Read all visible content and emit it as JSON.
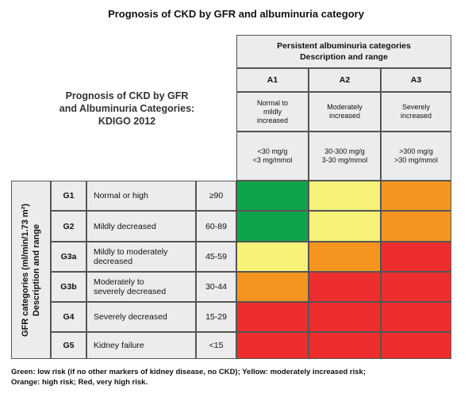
{
  "title": "Prognosis of CKD by GFR and albuminuria category",
  "left_title": [
    "Prognosis of CKD by GFR",
    "and Albuminuria Categories:",
    "KDIGO 2012"
  ],
  "albuminuria_header": [
    "Persistent albuminuria categories",
    "Description and range"
  ],
  "columns": [
    {
      "code": "A1",
      "desc": [
        "Normal to",
        "mildly",
        "increased"
      ],
      "range": [
        "<30 mg/g",
        "<3 mg/mmol"
      ]
    },
    {
      "code": "A2",
      "desc": [
        "Moderately",
        "increased"
      ],
      "range": [
        "30-300 mg/g",
        "3-30 mg/mmol"
      ]
    },
    {
      "code": "A3",
      "desc": [
        "Severely",
        "increased"
      ],
      "range": [
        ">300 mg/g",
        ">30 mg/mmol"
      ]
    }
  ],
  "gfr_header": [
    "GFR categories (ml/min/1.73 m²)",
    "Description and range"
  ],
  "rows": [
    {
      "code": "G1",
      "desc": [
        "Normal or high"
      ],
      "range": "≥90",
      "risk": [
        "green",
        "yellow",
        "orange"
      ]
    },
    {
      "code": "G2",
      "desc": [
        "Mildly decreased"
      ],
      "range": "60-89",
      "risk": [
        "green",
        "yellow",
        "orange"
      ]
    },
    {
      "code": "G3a",
      "desc": [
        "Mildly to moderately",
        "decreased"
      ],
      "range": "45-59",
      "risk": [
        "yellow",
        "orange",
        "red"
      ]
    },
    {
      "code": "G3b",
      "desc": [
        "Moderately to",
        "severely decreased"
      ],
      "range": "30-44",
      "risk": [
        "orange",
        "red",
        "red"
      ]
    },
    {
      "code": "G4",
      "desc": [
        "Severely decreased"
      ],
      "range": "15-29",
      "risk": [
        "red",
        "red",
        "red"
      ]
    },
    {
      "code": "G5",
      "desc": [
        "Kidney failure"
      ],
      "range": "<15",
      "risk": [
        "red",
        "red",
        "red"
      ]
    }
  ],
  "risk_colors": {
    "green": "#0fa34a",
    "yellow": "#f6f27a",
    "orange": "#f5951f",
    "red": "#ee2e2e"
  },
  "legend": [
    "Green: low risk (if no other markers of kidney disease, no CKD); Yellow: moderately increased risk;",
    "Orange: high risk; Red, very high risk."
  ]
}
